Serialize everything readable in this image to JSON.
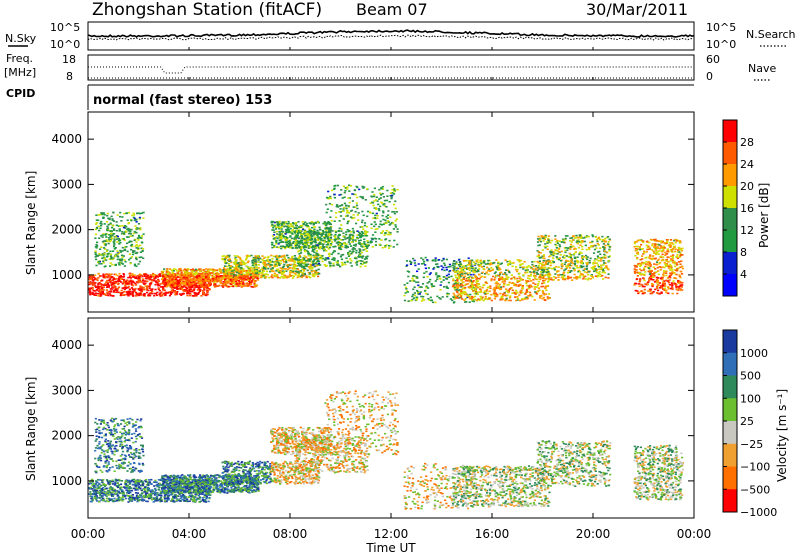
{
  "header": {
    "title": "Zhongshan Station (fitACF)",
    "beam": "Beam 07",
    "date": "30/Mar/2011"
  },
  "top_panels": {
    "nsky_label": "N.Sky",
    "nsearch_label": "N.Search",
    "freq_label": "Freq.",
    "freq_unit": "[MHz]",
    "nave_label": "Nave",
    "cpid_label": "CPID",
    "cpid_text": "normal (fast stereo) 153",
    "noise_ticks": [
      "10^5",
      "10^0"
    ],
    "freq_ticks": [
      "18",
      "8"
    ],
    "nave_ticks": [
      "60",
      "0"
    ]
  },
  "chart_data": [
    {
      "type": "heatmap",
      "name": "power",
      "ylabel": "Slant Range [km]",
      "ylim": [
        180,
        4600
      ],
      "yticks": [
        "4000",
        "3000",
        "2000",
        "1000"
      ],
      "colorbar_label": "Power [dB]",
      "colorbar_ticks": [
        "28",
        "24",
        "20",
        "16",
        "12",
        "8",
        "4"
      ],
      "colorbar_colors": [
        "#ff0000",
        "#ff5a00",
        "#ff9a00",
        "#cde000",
        "#2f8f4a",
        "#1f9a40",
        "#0a1fd0",
        "#0000ff"
      ],
      "grid": false
    },
    {
      "type": "heatmap",
      "name": "velocity",
      "ylabel": "Slant Range [km]",
      "ylim": [
        180,
        4600
      ],
      "yticks": [
        "4000",
        "3000",
        "2000",
        "1000"
      ],
      "colorbar_label": "Velocity [m s⁻¹]",
      "colorbar_ticks": [
        "1000",
        "500",
        "100",
        "25",
        "−25",
        "−100",
        "−500",
        "−1000"
      ],
      "colorbar_colors": [
        "#1a3aa0",
        "#2f6fb8",
        "#2e8a5a",
        "#6cc030",
        "#c8c8c0",
        "#f0a030",
        "#ff7000",
        "#ff0000"
      ],
      "grid": false
    }
  ],
  "x_axis": {
    "ticks": [
      "00:00",
      "04:00",
      "08:00",
      "12:00",
      "16:00",
      "20:00",
      "00:00"
    ],
    "label": "Time UT"
  }
}
